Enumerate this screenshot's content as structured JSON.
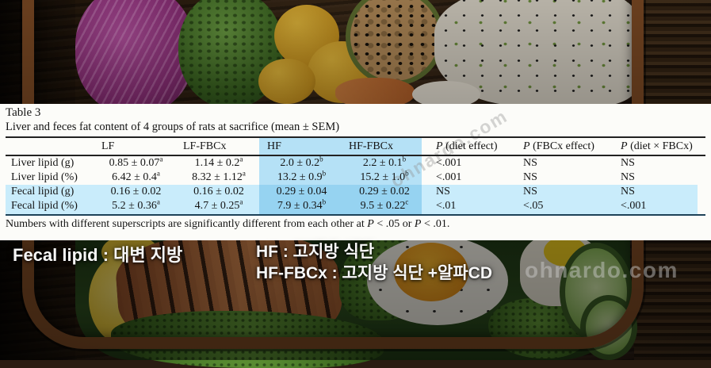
{
  "table": {
    "title": "Table 3",
    "subtitle": "Liver and feces fat content of 4 groups of rats at sacrifice (mean ± SEM)",
    "headers": [
      {
        "t": ""
      },
      {
        "t": "LF"
      },
      {
        "t": "LF-FBCx"
      },
      {
        "t": "HF"
      },
      {
        "t": "HF-FBCx"
      },
      {
        "i": "P",
        "t": " (diet effect)"
      },
      {
        "i": "P",
        "t": " (FBCx effect)"
      },
      {
        "i": "P",
        "t": " (diet × FBCx)"
      }
    ],
    "rows": [
      {
        "label": "Liver lipid (g)",
        "cells": [
          {
            "v": "0.85 ± 0.07",
            "sup": "a"
          },
          {
            "v": "1.14 ± 0.2",
            "sup": "a"
          },
          {
            "v": "2.0 ± 0.2",
            "sup": "b"
          },
          {
            "v": "2.2 ± 0.1",
            "sup": "b"
          },
          {
            "v": "<.001"
          },
          {
            "v": "NS"
          },
          {
            "v": "NS"
          }
        ]
      },
      {
        "label": "Liver lipid (%)",
        "cells": [
          {
            "v": "6.42 ± 0.4",
            "sup": "a"
          },
          {
            "v": "8.32 ± 1.12",
            "sup": "a"
          },
          {
            "v": "13.2 ± 0.9",
            "sup": "b"
          },
          {
            "v": "15.2 ± 1.0",
            "sup": "b"
          },
          {
            "v": "<.001"
          },
          {
            "v": "NS"
          },
          {
            "v": "NS"
          }
        ]
      },
      {
        "label": "Fecal lipid (g)",
        "cells": [
          {
            "v": "0.16 ± 0.02"
          },
          {
            "v": "0.16 ± 0.02"
          },
          {
            "v": "0.29 ± 0.04"
          },
          {
            "v": "0.29 ± 0.02"
          },
          {
            "v": "NS"
          },
          {
            "v": "NS"
          },
          {
            "v": "NS"
          }
        ]
      },
      {
        "label": "Fecal lipid (%)",
        "cells": [
          {
            "v": "5.2 ± 0.36",
            "sup": "a"
          },
          {
            "v": "4.7 ± 0.25",
            "sup": "a"
          },
          {
            "v": "7.9 ± 0.34",
            "sup": "b"
          },
          {
            "v": "9.5 ± 0.22",
            "sup": "c"
          },
          {
            "v": "<.01"
          },
          {
            "v": "<.05"
          },
          {
            "v": "<.001"
          }
        ]
      }
    ],
    "footnote": [
      {
        "t": "Numbers with different superscripts are significantly different from each other at "
      },
      {
        "i": "P"
      },
      {
        "t": " < .05 or "
      },
      {
        "i": "P"
      },
      {
        "t": " < .01."
      }
    ]
  },
  "annotations": {
    "fecal_lipid": "Fecal lipid : 대변 지방",
    "hf": "HF : 고지방 식단",
    "hf_fbcx": "HF-FBCx : 고지방 식단 +알파CD"
  },
  "watermarks": {
    "diagonal": "ohnardo.com",
    "bottom_right": "ohnardo.com"
  },
  "colors": {
    "column_highlight": "#b5e1f6",
    "row_highlight": "#c9ecfb",
    "intersection_highlight": "#96d3f1",
    "panel_background": "#fcfcf9"
  }
}
